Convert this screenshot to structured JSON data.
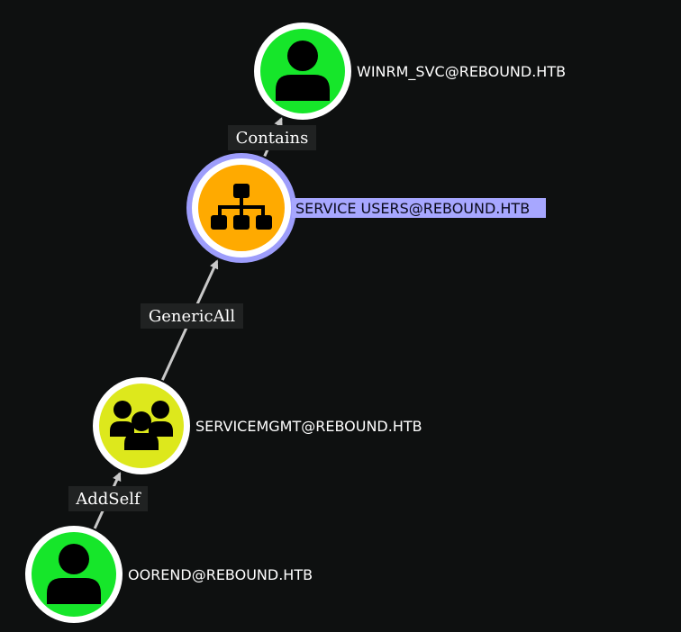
{
  "graph": {
    "nodes": [
      {
        "id": "winrm",
        "label": "WINRM_SVC@REBOUND.HTB",
        "type": "user",
        "icon": "user-icon",
        "fill": "#16e62a",
        "ring": "#ffffff",
        "highlighted": false
      },
      {
        "id": "service_users",
        "label": "SERVICE USERS@REBOUND.HTB",
        "type": "ou",
        "icon": "org-chart-icon",
        "fill": "#ffaa00",
        "ring": "#9d9dfb",
        "highlighted": true
      },
      {
        "id": "servicemgmt",
        "label": "SERVICEMGMT@REBOUND.HTB",
        "type": "group",
        "icon": "group-icon",
        "fill": "#dde81c",
        "ring": "#ffffff",
        "highlighted": false
      },
      {
        "id": "oorend",
        "label": "OOREND@REBOUND.HTB",
        "type": "user",
        "icon": "user-icon",
        "fill": "#16e62a",
        "ring": "#ffffff",
        "highlighted": false
      }
    ],
    "edges": [
      {
        "id": "e1",
        "from": "service_users",
        "to": "winrm",
        "label": "Contains"
      },
      {
        "id": "e2",
        "from": "servicemgmt",
        "to": "service_users",
        "label": "GenericAll"
      },
      {
        "id": "e3",
        "from": "oorend",
        "to": "servicemgmt",
        "label": "AddSelf"
      }
    ],
    "colors": {
      "background": "#0e1010",
      "edge": "#c8c8c8",
      "label_highlight": "#a7a7ff"
    }
  }
}
